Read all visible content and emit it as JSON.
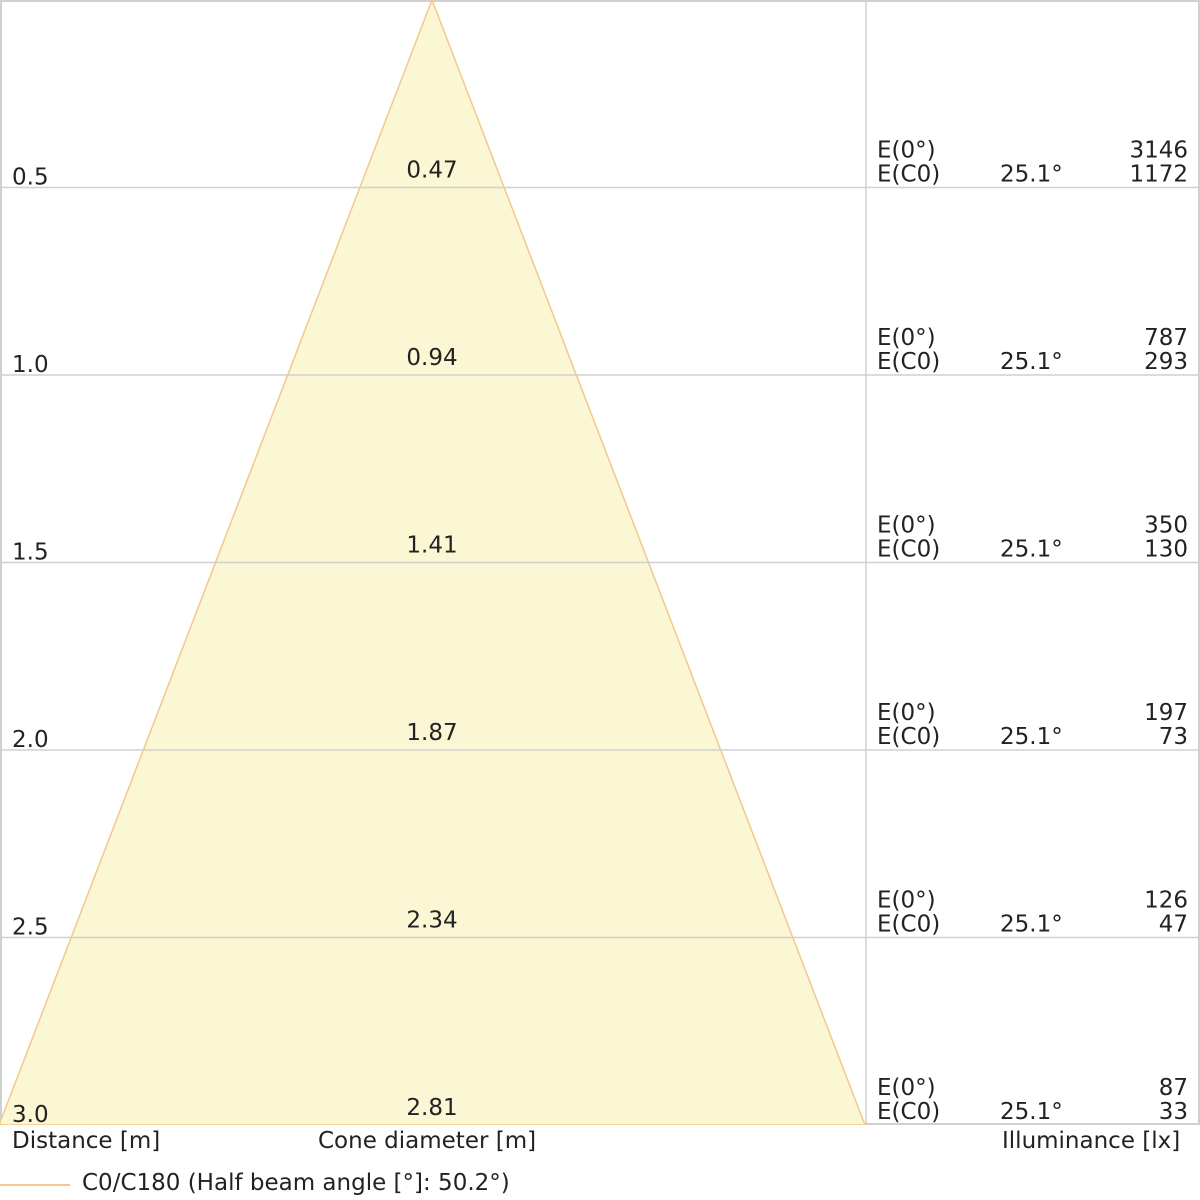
{
  "chart_data": {
    "type": "cone-diagram",
    "rows": [
      {
        "distance": "0.5",
        "diameter": "0.47",
        "e0_label": "E(0°)",
        "ec0_label": "E(C0)",
        "angle": "25.1°",
        "e0": "3146",
        "ec0": "1172"
      },
      {
        "distance": "1.0",
        "diameter": "0.94",
        "e0_label": "E(0°)",
        "ec0_label": "E(C0)",
        "angle": "25.1°",
        "e0": "787",
        "ec0": "293"
      },
      {
        "distance": "1.5",
        "diameter": "1.41",
        "e0_label": "E(0°)",
        "ec0_label": "E(C0)",
        "angle": "25.1°",
        "e0": "350",
        "ec0": "130"
      },
      {
        "distance": "2.0",
        "diameter": "1.87",
        "e0_label": "E(0°)",
        "ec0_label": "E(C0)",
        "angle": "25.1°",
        "e0": "197",
        "ec0": "73"
      },
      {
        "distance": "2.5",
        "diameter": "2.34",
        "e0_label": "E(0°)",
        "ec0_label": "E(C0)",
        "angle": "25.1°",
        "e0": "126",
        "ec0": "47"
      },
      {
        "distance": "3.0",
        "diameter": "2.81",
        "e0_label": "E(0°)",
        "ec0_label": "E(C0)",
        "angle": "25.1°",
        "e0": "87",
        "ec0": "33"
      }
    ],
    "axis_labels": {
      "distance": "Distance [m]",
      "diameter": "Cone diameter [m]",
      "illuminance": "Illuminance [lx]"
    },
    "legend": {
      "label": "C0/C180 (Half beam angle [°]: 50.2°)",
      "color": "#f2c98a"
    },
    "colors": {
      "cone_fill": "#fbf6d3",
      "cone_stroke": "#f2c98a",
      "grid": "#d0d0d0",
      "text": "#222222"
    }
  }
}
